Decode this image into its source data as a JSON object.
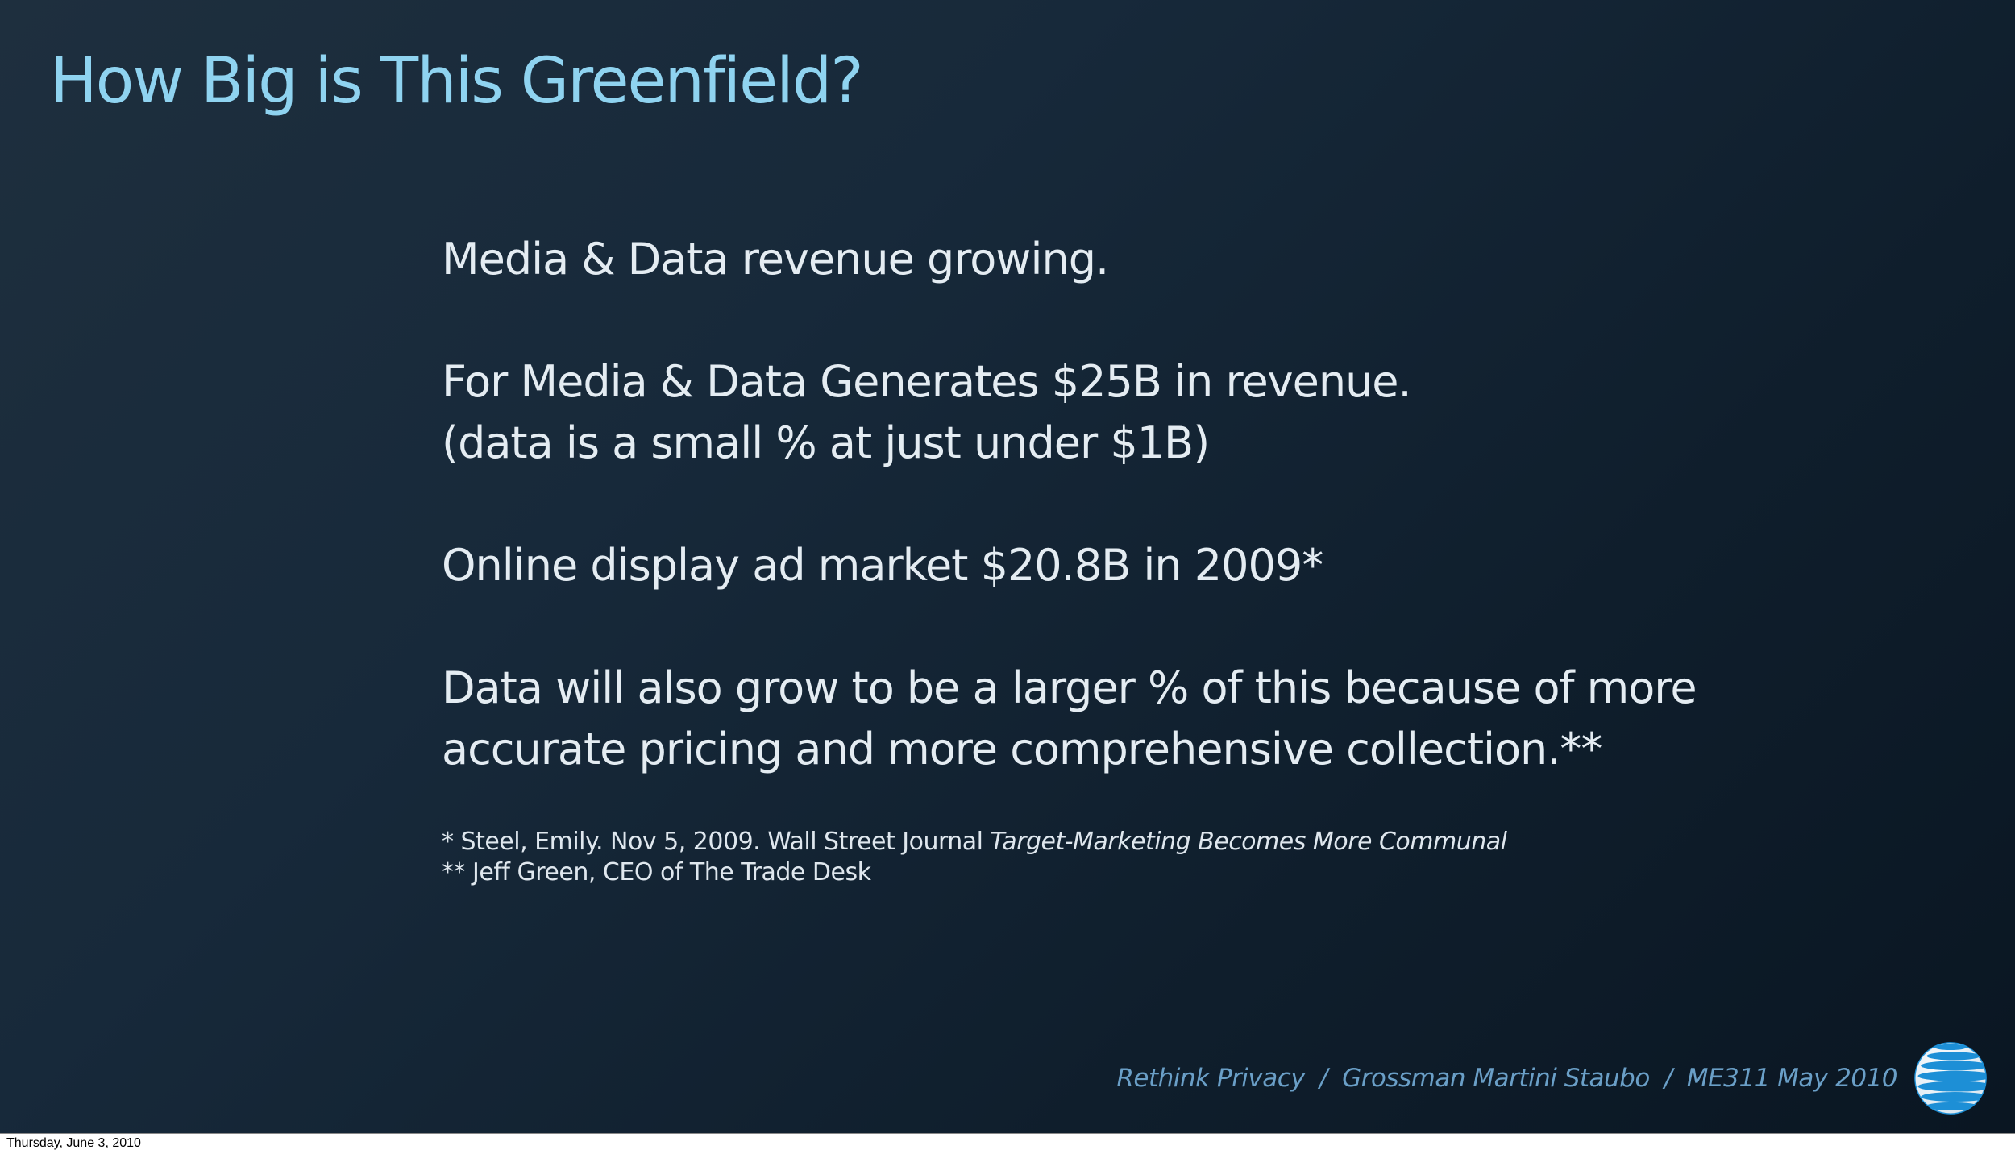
{
  "slide": {
    "title": "How Big is This Greenfield?",
    "bullets": [
      [
        "Media & Data revenue growing."
      ],
      [
        "For Media & Data Generates $25B in revenue.",
        "(data is a small % at just under $1B)"
      ],
      [
        "Online display ad market  $20.8B in 2009*"
      ],
      [
        "Data will also grow to be a larger % of this because of more",
        "accurate pricing and more comprehensive collection.**"
      ]
    ],
    "footnotes": {
      "first_plain": "* Steel, Emily.  Nov 5, 2009. Wall Street Journal ",
      "first_italic": "Target-Marketing Becomes More Communal",
      "second": "** Jeff Green, CEO of The Trade Desk"
    },
    "footer": {
      "topic": "Rethink Privacy",
      "authors": "Grossman  Martini  Staubo",
      "course": "ME311  May 2010",
      "separator": "/"
    },
    "logo_icon": "att-globe-icon",
    "colors": {
      "title": "#8fd3f0",
      "body": "#e4ecf2",
      "footer": "#6a9fc7",
      "background_dark": "#0a1622"
    }
  },
  "caption": {
    "date": "Thursday, June 3, 2010"
  }
}
